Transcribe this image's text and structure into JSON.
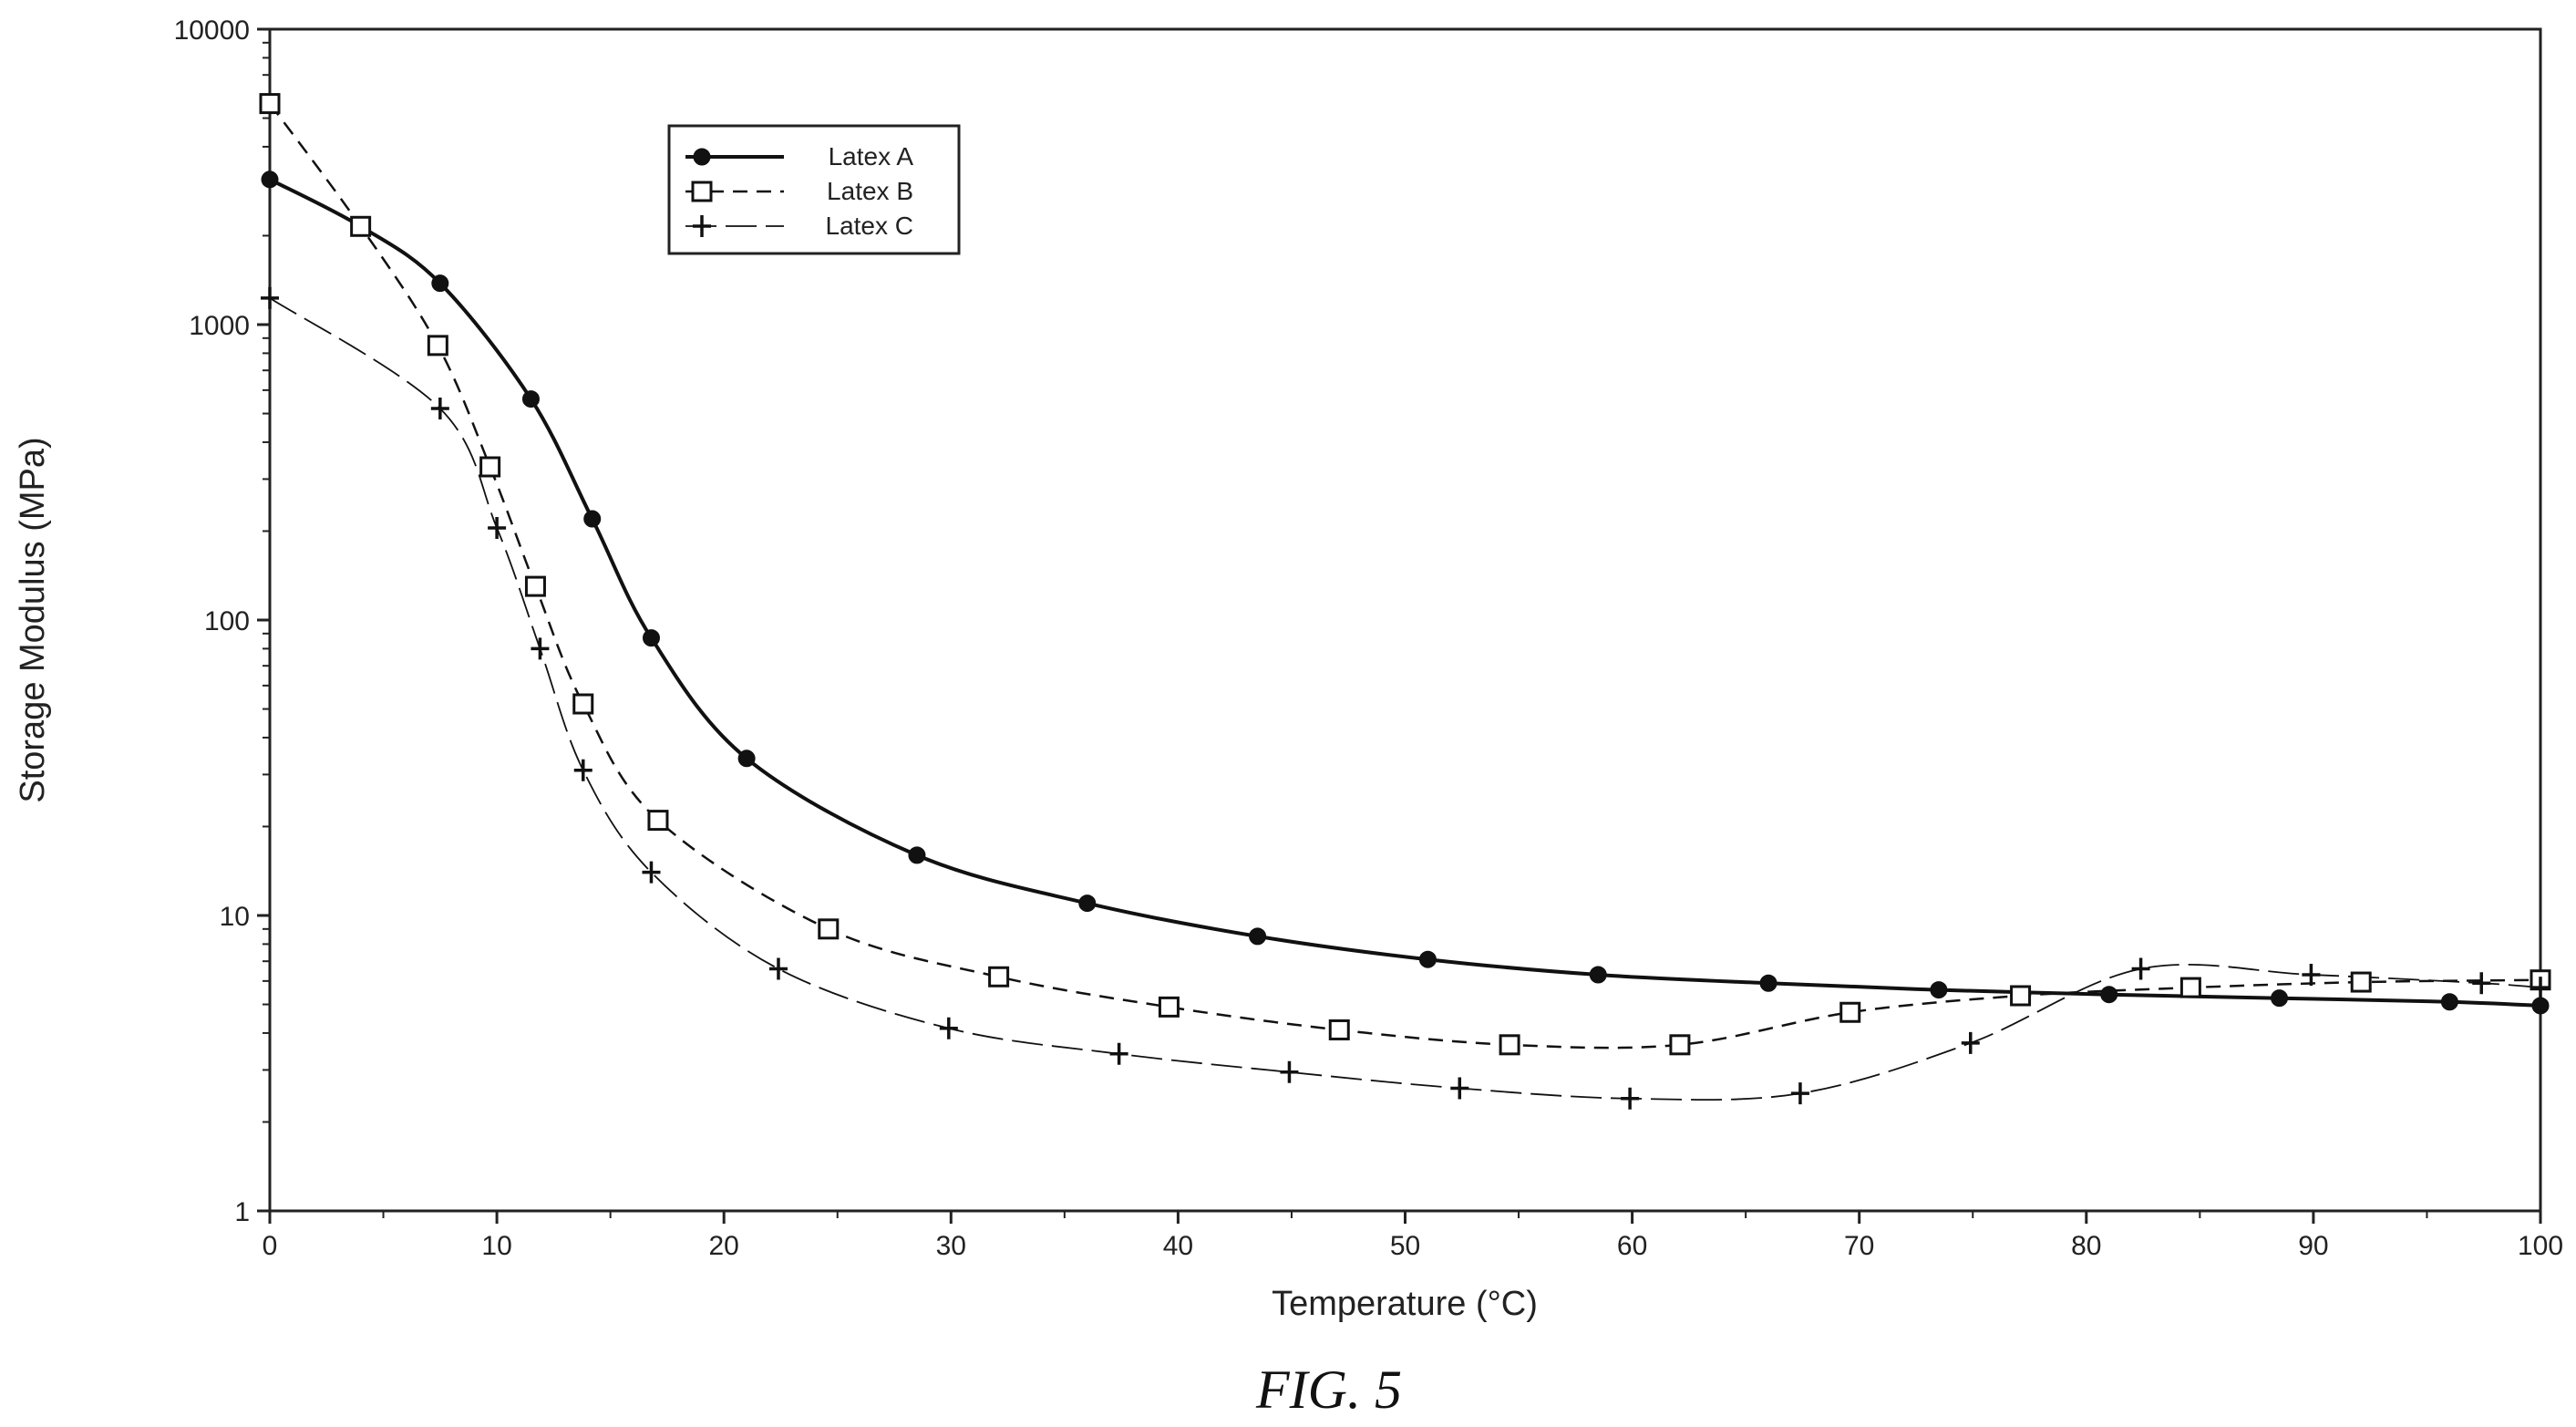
{
  "figure": {
    "caption": "FIG. 5"
  },
  "chart_data": {
    "type": "line",
    "title": "",
    "xlabel": "Temperature (°C)",
    "ylabel": "Storage Modulus (MPa)",
    "xlim": [
      0,
      100
    ],
    "ylim": [
      1,
      10000
    ],
    "yscale": "log",
    "grid": false,
    "legend_position": "top-left",
    "x_ticks": [
      0,
      10,
      20,
      30,
      40,
      50,
      60,
      70,
      80,
      90,
      100
    ],
    "y_ticks": [
      1,
      10,
      100,
      1000,
      10000
    ],
    "x_tick_labels": [
      "0",
      "10",
      "20",
      "30",
      "40",
      "50",
      "60",
      "70",
      "80",
      "90",
      "100"
    ],
    "y_tick_labels": [
      "1",
      "10",
      "100",
      "1000",
      "10000"
    ],
    "series": [
      {
        "name": "Latex A",
        "marker": "filled-circle",
        "line_style": "solid",
        "color": "#111111",
        "points": [
          [
            0,
            3100
          ],
          [
            4,
            2150
          ],
          [
            7.5,
            1380
          ],
          [
            11.5,
            560
          ],
          [
            14.2,
            220
          ],
          [
            16.8,
            87
          ],
          [
            21,
            34
          ],
          [
            28.5,
            16
          ],
          [
            36,
            11
          ],
          [
            43.5,
            8.5
          ],
          [
            51,
            7.1
          ],
          [
            58.5,
            6.3
          ],
          [
            66,
            5.9
          ],
          [
            73.5,
            5.6
          ],
          [
            81,
            5.4
          ],
          [
            88.5,
            5.25
          ],
          [
            96,
            5.1
          ],
          [
            100,
            4.95
          ]
        ]
      },
      {
        "name": "Latex B",
        "marker": "open-square",
        "line_style": "dashed",
        "color": "#111111",
        "points": [
          [
            0,
            5600
          ],
          [
            4,
            2150
          ],
          [
            7.4,
            850
          ],
          [
            9.7,
            330
          ],
          [
            11.7,
            130
          ],
          [
            13.8,
            52
          ],
          [
            17.1,
            21
          ],
          [
            24.6,
            9
          ],
          [
            32.1,
            6.2
          ],
          [
            39.6,
            4.9
          ],
          [
            47.1,
            4.1
          ],
          [
            54.6,
            3.65
          ],
          [
            62.1,
            3.65
          ],
          [
            69.6,
            4.7
          ],
          [
            77.1,
            5.35
          ],
          [
            84.6,
            5.7
          ],
          [
            92.1,
            5.95
          ],
          [
            100,
            6.05
          ]
        ]
      },
      {
        "name": "Latex C",
        "marker": "plus-star",
        "line_style": "long-dash",
        "color": "#111111",
        "points": [
          [
            0,
            1230
          ],
          [
            7.5,
            520
          ],
          [
            10,
            205
          ],
          [
            11.9,
            80
          ],
          [
            13.8,
            31
          ],
          [
            16.8,
            14
          ],
          [
            22.4,
            6.6
          ],
          [
            29.9,
            4.15
          ],
          [
            37.4,
            3.4
          ],
          [
            44.9,
            2.95
          ],
          [
            52.4,
            2.6
          ],
          [
            59.9,
            2.4
          ],
          [
            67.4,
            2.5
          ],
          [
            74.9,
            3.7
          ],
          [
            82.4,
            6.6
          ],
          [
            89.9,
            6.3
          ],
          [
            97.4,
            5.9
          ],
          [
            100,
            5.7
          ]
        ]
      }
    ]
  }
}
